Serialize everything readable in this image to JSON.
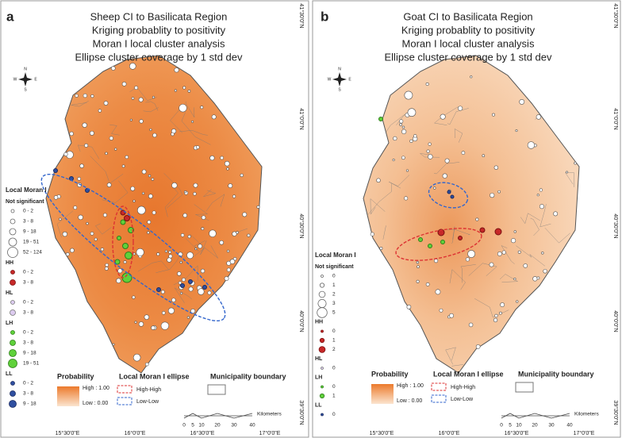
{
  "panels": [
    {
      "label": "a",
      "title": [
        "Sheep CI to Basilicata Region",
        "Kriging probablity to positivity",
        "Moran I local cluster analysis",
        "Ellipse cluster coverage by 1 std dev"
      ],
      "compass": [
        "N",
        "E",
        "S",
        "W"
      ],
      "lat_labels": [
        "41°30'0\"N",
        "41°0'0\"N",
        "40°30'0\"N",
        "40°0'0\"N",
        "39°30'0\"N"
      ],
      "lon_labels": [
        "15°30'0\"E",
        "16°0'0\"E",
        "16°30'0\"E",
        "17°0'0\"E"
      ],
      "legend": {
        "heading": "Local Moran I",
        "groups": [
          {
            "name": "Not significant",
            "items": [
              "0 - 2",
              "3 - 8",
              "9 - 18",
              "19 - 51",
              "52 - 124"
            ]
          },
          {
            "name": "HH",
            "items": [
              "0 - 2",
              "3 - 8"
            ]
          },
          {
            "name": "HL",
            "items": [
              "0 - 2",
              "3 - 8"
            ]
          },
          {
            "name": "LH",
            "items": [
              "0 - 2",
              "3 - 8",
              "9 - 18",
              "19 - 51"
            ]
          },
          {
            "name": "LL",
            "items": [
              "0 - 2",
              "3 - 8",
              "9 - 18"
            ]
          }
        ]
      },
      "probability": {
        "heading": "Probability",
        "high": "High : 1.00",
        "low": "Low : 0.00"
      },
      "ellipse_legend": {
        "heading": "Local Moran I ellipse",
        "high_high": "High-High",
        "low_low": "Low-Low"
      },
      "boundary_legend": "Municipality boundary",
      "scale": {
        "ticks": [
          "0",
          "5",
          "10",
          "20",
          "30",
          "40"
        ],
        "unit": "Kilometers"
      }
    },
    {
      "label": "b",
      "title": [
        "Goat CI to Basilicata Region",
        "Kriging probablity to positivity",
        "Moran I local cluster analysis",
        "Ellipse cluster coverage by 1 std dev"
      ],
      "compass": [
        "N",
        "E",
        "S",
        "W"
      ],
      "lat_labels": [
        "41°30'0\"N",
        "41°0'0\"N",
        "40°30'0\"N",
        "40°0'0\"N",
        "39°30'0\"N"
      ],
      "lon_labels": [
        "15°30'0\"E",
        "16°0'0\"E",
        "16°30'0\"E",
        "17°0'0\"E"
      ],
      "legend": {
        "heading": "Local Moran I",
        "groups": [
          {
            "name": "Not significant",
            "items": [
              "0",
              "1",
              "2",
              "3",
              "5"
            ]
          },
          {
            "name": "HH",
            "items": [
              "0",
              "1",
              "2"
            ]
          },
          {
            "name": "HL",
            "items": [
              "0"
            ]
          },
          {
            "name": "LH",
            "items": [
              "0",
              "1"
            ]
          },
          {
            "name": "LL",
            "items": [
              "0"
            ]
          }
        ]
      },
      "probability": {
        "heading": "Probability",
        "high": "High : 1.00",
        "low": "Low : 0.00"
      },
      "ellipse_legend": {
        "heading": "Local Moran I ellipse",
        "high_high": "High-High",
        "low_low": "Low-Low"
      },
      "boundary_legend": "Municipality boundary",
      "scale": {
        "ticks": [
          "0",
          "5",
          "10",
          "20",
          "30",
          "40"
        ],
        "unit": "Kilometers"
      }
    }
  ]
}
